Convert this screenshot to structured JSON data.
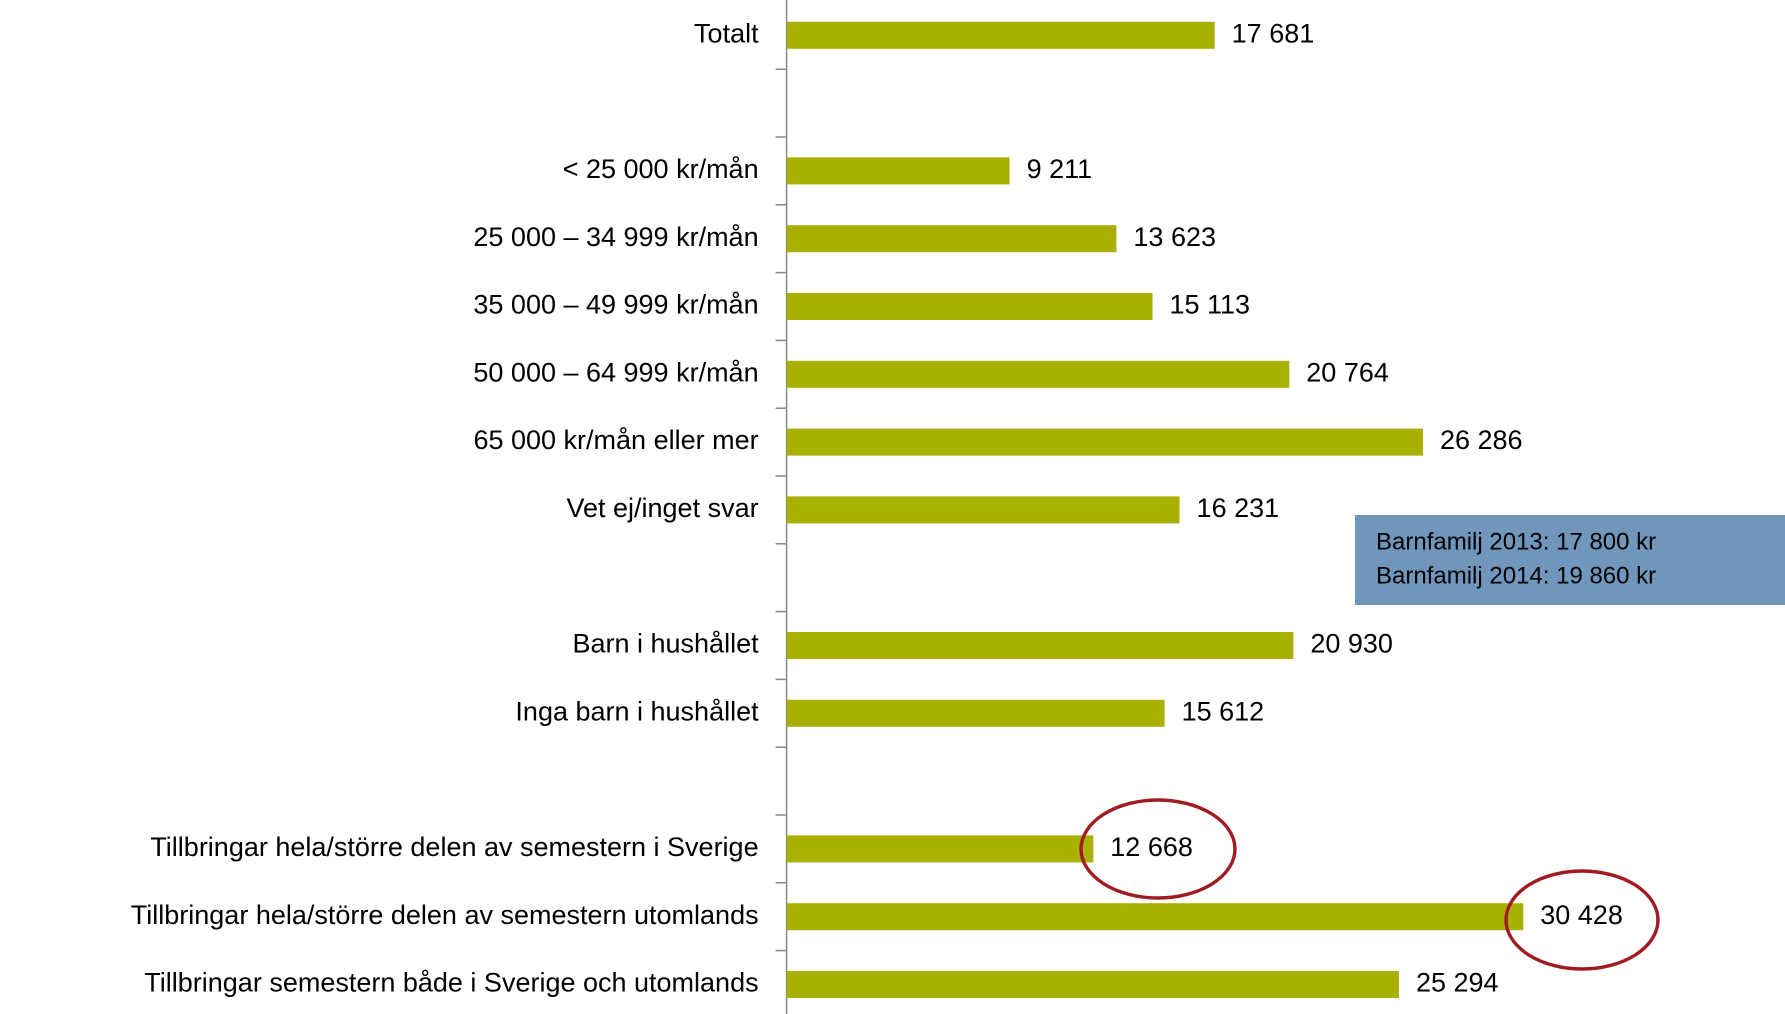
{
  "chart_data": {
    "type": "bar",
    "orientation": "horizontal",
    "categories": [
      "Totalt",
      null,
      "< 25 000 kr/mån",
      "25 000 – 34 999 kr/mån",
      "35 000 – 49 999 kr/mån",
      "50 000 – 64 999 kr/mån",
      "65 000 kr/mån eller mer",
      "Vet ej/inget svar",
      null,
      "Barn i hushållet",
      "Inga barn i hushållet",
      null,
      "Tillbringar hela/större delen av semestern i Sverige",
      "Tillbringar hela/större delen av semestern utomlands",
      "Tillbringar semestern både i Sverige och utomlands"
    ],
    "values": [
      17681,
      null,
      9211,
      13623,
      15113,
      20764,
      26286,
      16231,
      null,
      20930,
      15612,
      null,
      12668,
      30428,
      25294
    ],
    "value_labels": [
      "17 681",
      null,
      "9 211",
      "13 623",
      "15 113",
      "20 764",
      "26 286",
      "16 231",
      null,
      "20 930",
      "15 612",
      null,
      "12 668",
      "30 428",
      "25 294"
    ],
    "color": "#a8b000",
    "xlim": [
      0,
      40000
    ],
    "annotations": [
      "Barnfamilj 2013: 17 800 kr",
      "Barnfamilj 2014: 19 860 kr"
    ]
  }
}
